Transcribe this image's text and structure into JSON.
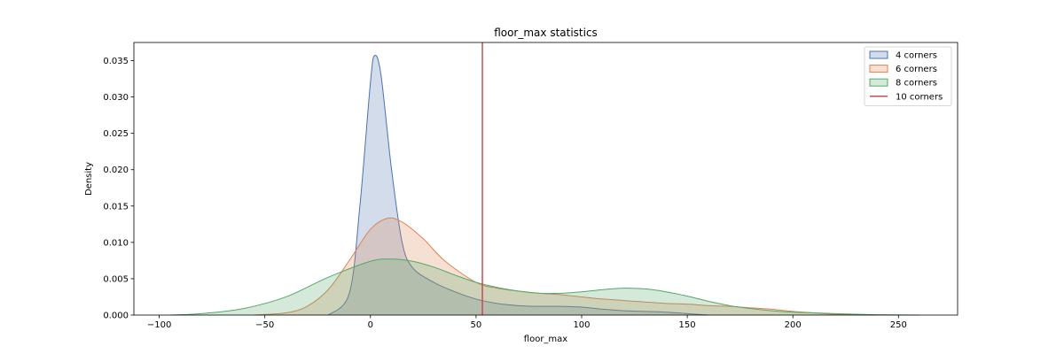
{
  "chart_data": {
    "type": "area",
    "title": "floor_max statistics",
    "xlabel": "floor_max",
    "ylabel": "Density",
    "xlim": [
      -112,
      278
    ],
    "ylim": [
      0,
      0.0375
    ],
    "xticks": [
      -100,
      -50,
      0,
      50,
      100,
      150,
      200,
      250
    ],
    "xtick_labels": [
      "−100",
      "−50",
      "0",
      "50",
      "100",
      "150",
      "200",
      "250"
    ],
    "yticks": [
      0,
      0.005,
      0.01,
      0.015,
      0.02,
      0.025,
      0.03,
      0.035
    ],
    "ytick_labels": [
      "0.000",
      "0.005",
      "0.010",
      "0.015",
      "0.020",
      "0.025",
      "0.030",
      "0.035"
    ],
    "grid": false,
    "legend_position": "top-right",
    "series": [
      {
        "name": "4 corners",
        "color": "#4c72b0",
        "fill": "#4c72b0",
        "x": [
          -20,
          -10,
          -5,
          0,
          2,
          5,
          10,
          15,
          20,
          30,
          40,
          50,
          60,
          70,
          80,
          90,
          100,
          110,
          120,
          130,
          140,
          150,
          160
        ],
        "y": [
          0.0,
          0.003,
          0.015,
          0.032,
          0.0357,
          0.033,
          0.02,
          0.01,
          0.0065,
          0.0045,
          0.0032,
          0.0022,
          0.0016,
          0.0013,
          0.0012,
          0.0012,
          0.0011,
          0.0008,
          0.0006,
          0.0005,
          0.0004,
          0.0002,
          0.0
        ]
      },
      {
        "name": "6 corners",
        "color": "#dd8452",
        "fill": "#dd8452",
        "x": [
          -55,
          -40,
          -30,
          -20,
          -10,
          0,
          8,
          15,
          25,
          35,
          50,
          60,
          70,
          80,
          90,
          100,
          110,
          120,
          130,
          140,
          150,
          160,
          170,
          180,
          190,
          200,
          210,
          220,
          230,
          240
        ],
        "y": [
          0.0,
          0.0003,
          0.0012,
          0.0035,
          0.0075,
          0.0118,
          0.0133,
          0.0128,
          0.0105,
          0.0075,
          0.0045,
          0.0037,
          0.0033,
          0.003,
          0.0028,
          0.0025,
          0.0022,
          0.002,
          0.0018,
          0.0016,
          0.0015,
          0.0013,
          0.0012,
          0.001,
          0.0008,
          0.0005,
          0.0003,
          0.0001,
          5e-05,
          0.0
        ]
      },
      {
        "name": "8 corners",
        "color": "#55a868",
        "fill": "#55a868",
        "x": [
          -95,
          -80,
          -60,
          -40,
          -20,
          0,
          10,
          20,
          30,
          40,
          50,
          60,
          70,
          80,
          90,
          100,
          110,
          120,
          130,
          140,
          150,
          160,
          170,
          180,
          190,
          200,
          210,
          220,
          240,
          260
        ],
        "y": [
          0.0,
          0.0002,
          0.0009,
          0.0025,
          0.0052,
          0.0074,
          0.0077,
          0.0074,
          0.0066,
          0.0055,
          0.0045,
          0.0038,
          0.0033,
          0.003,
          0.003,
          0.0032,
          0.0035,
          0.0037,
          0.0036,
          0.0032,
          0.0026,
          0.0019,
          0.0013,
          0.0009,
          0.0006,
          0.0004,
          0.0003,
          0.0002,
          5e-05,
          0.0
        ]
      }
    ],
    "vlines": [
      {
        "name": "10 corners",
        "x": 53,
        "color": "#c44e52"
      }
    ]
  }
}
